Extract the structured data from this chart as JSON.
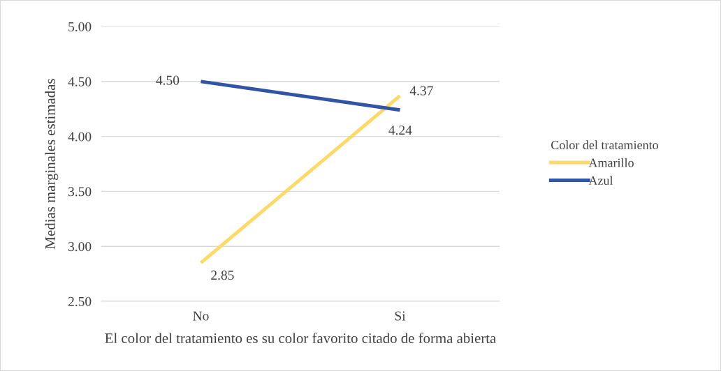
{
  "chart_data": {
    "type": "line",
    "xlabel": "El color del tratamiento es su color favorito citado de forma abierta",
    "ylabel": "Medias marginales estimadas",
    "legend_title": "Color del tratamiento",
    "categories": [
      "No",
      "Si"
    ],
    "series": [
      {
        "name": "Amarillo",
        "color": "#ffd966",
        "values": [
          2.85,
          4.37
        ],
        "value_labels": [
          "2.85",
          "4.37"
        ]
      },
      {
        "name": "Azul",
        "color": "#2f55a4",
        "values": [
          4.5,
          4.24
        ],
        "value_labels": [
          "4.50",
          "4.24"
        ]
      }
    ],
    "ylim": [
      2.5,
      5.0
    ],
    "yticks": [
      {
        "value": 2.5,
        "label": "2.50"
      },
      {
        "value": 3.0,
        "label": "3.00"
      },
      {
        "value": 3.5,
        "label": "3.50"
      },
      {
        "value": 4.0,
        "label": "4.00"
      },
      {
        "value": 4.5,
        "label": "4.50"
      },
      {
        "value": 5.0,
        "label": "5.00"
      }
    ],
    "grid": "y",
    "legend": "right",
    "marker": "none",
    "line_style": "solid"
  }
}
